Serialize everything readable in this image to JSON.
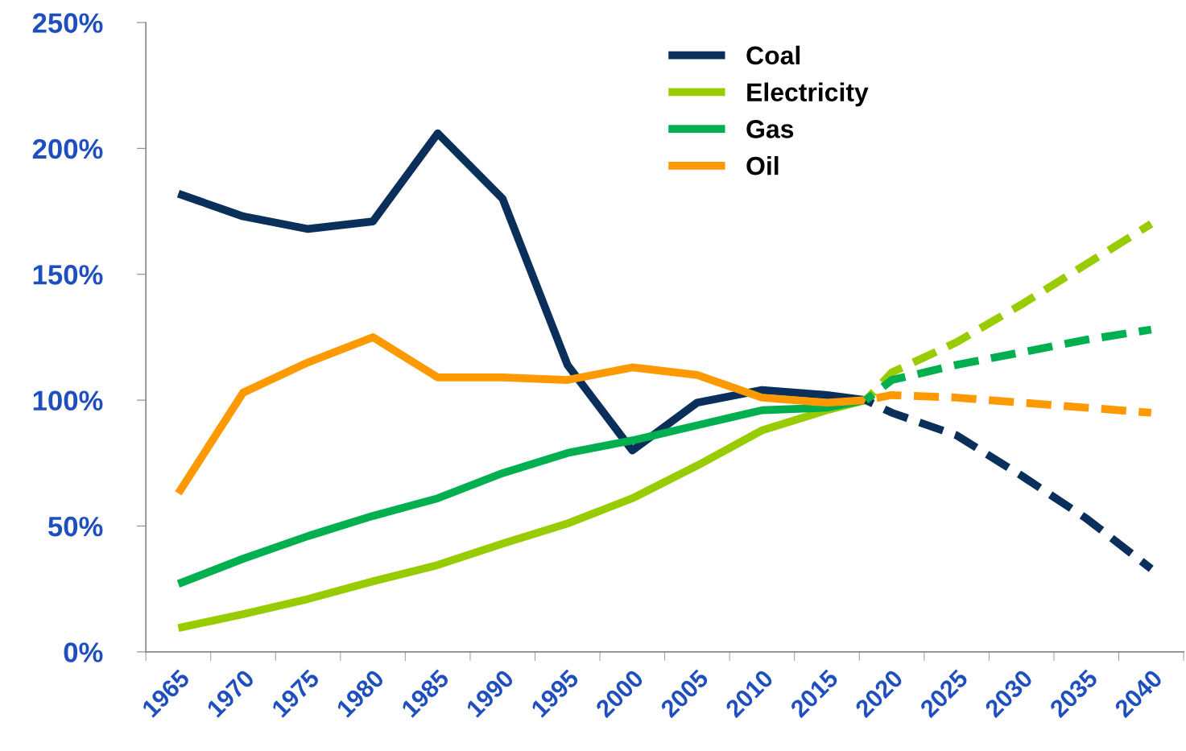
{
  "chart_data": {
    "type": "line",
    "ylim": [
      0,
      250
    ],
    "yticks": [
      {
        "value": 0,
        "label": "0%"
      },
      {
        "value": 50,
        "label": "50%"
      },
      {
        "value": 100,
        "label": "100%"
      },
      {
        "value": 150,
        "label": "150%"
      },
      {
        "value": 200,
        "label": "200%"
      },
      {
        "value": 250,
        "label": "250%"
      }
    ],
    "xlim": [
      1962.5,
      2042.5
    ],
    "xticks": [
      {
        "value": 1962.5,
        "label": null
      },
      {
        "value": 1965,
        "label": "1965"
      },
      {
        "value": 1967.5,
        "label": null
      },
      {
        "value": 1970,
        "label": "1970"
      },
      {
        "value": 1972.5,
        "label": null
      },
      {
        "value": 1975,
        "label": "1975"
      },
      {
        "value": 1977.5,
        "label": null
      },
      {
        "value": 1980,
        "label": "1980"
      },
      {
        "value": 1982.5,
        "label": null
      },
      {
        "value": 1985,
        "label": "1985"
      },
      {
        "value": 1987.5,
        "label": null
      },
      {
        "value": 1990,
        "label": "1990"
      },
      {
        "value": 1992.5,
        "label": null
      },
      {
        "value": 1995,
        "label": "1995"
      },
      {
        "value": 1997.5,
        "label": null
      },
      {
        "value": 2000,
        "label": "2000"
      },
      {
        "value": 2002.5,
        "label": null
      },
      {
        "value": 2005,
        "label": "2005"
      },
      {
        "value": 2007.5,
        "label": null
      },
      {
        "value": 2010,
        "label": "2010"
      },
      {
        "value": 2012.5,
        "label": null
      },
      {
        "value": 2015,
        "label": "2015"
      },
      {
        "value": 2017.5,
        "label": null
      },
      {
        "value": 2020,
        "label": "2020"
      },
      {
        "value": 2022.5,
        "label": null
      },
      {
        "value": 2025,
        "label": "2025"
      },
      {
        "value": 2027.5,
        "label": null
      },
      {
        "value": 2030,
        "label": "2030"
      },
      {
        "value": 2032.5,
        "label": null
      },
      {
        "value": 2035,
        "label": "2035"
      },
      {
        "value": 2037.5,
        "label": null
      },
      {
        "value": 2040,
        "label": "2040"
      },
      {
        "value": 2042.5,
        "label": null
      }
    ],
    "grid": false,
    "legend": "top",
    "marker": "none",
    "series": [
      {
        "name": "Coal",
        "color": "#0b2f5b",
        "line_style": "solid",
        "x": [
          1965,
          1970,
          1975,
          1980,
          1985,
          1990,
          1995,
          2000,
          2005,
          2010,
          2015,
          2018
        ],
        "values": [
          182,
          173,
          168,
          171,
          206,
          180,
          114,
          80,
          99,
          104,
          102,
          100
        ]
      },
      {
        "name": "Electricity",
        "color": "#99cc00",
        "line_style": "solid",
        "x": [
          1965,
          1970,
          1975,
          1980,
          1985,
          1990,
          1995,
          2000,
          2005,
          2010,
          2015,
          2018
        ],
        "values": [
          9.5,
          15,
          21,
          28,
          34.5,
          43,
          51,
          61,
          74,
          88,
          96,
          100
        ]
      },
      {
        "name": "Gas",
        "color": "#00b050",
        "line_style": "solid",
        "x": [
          1965,
          1970,
          1975,
          1980,
          1985,
          1990,
          1995,
          2000,
          2005,
          2010,
          2015,
          2018
        ],
        "values": [
          27,
          37,
          46,
          54,
          61,
          71,
          79,
          84,
          90,
          96,
          97,
          100
        ]
      },
      {
        "name": "Oil",
        "color": "#ff9900",
        "line_style": "solid",
        "x": [
          1965,
          1970,
          1975,
          1980,
          1985,
          1990,
          1995,
          2000,
          2005,
          2010,
          2015,
          2018
        ],
        "values": [
          63,
          103,
          115,
          125,
          109,
          109,
          108,
          113,
          110,
          101,
          99,
          100
        ]
      },
      {
        "color": "#0b2f5b",
        "line_style": "dashed",
        "x": [
          2018,
          2020,
          2025,
          2030,
          2035,
          2040
        ],
        "values": [
          100,
          95,
          86,
          70,
          53,
          33
        ]
      },
      {
        "color": "#99cc00",
        "line_style": "dashed",
        "x": [
          2018,
          2020,
          2025,
          2030,
          2035,
          2040
        ],
        "values": [
          100,
          111,
          123,
          138,
          154,
          170
        ]
      },
      {
        "color": "#00b050",
        "line_style": "dashed",
        "x": [
          2018,
          2020,
          2025,
          2030,
          2035,
          2040
        ],
        "values": [
          100,
          108,
          114,
          119,
          124,
          128
        ]
      },
      {
        "color": "#ff9900",
        "line_style": "dashed",
        "x": [
          2018,
          2020,
          2025,
          2030,
          2035,
          2040
        ],
        "values": [
          100,
          102,
          101,
          99,
          97,
          95
        ]
      }
    ]
  }
}
